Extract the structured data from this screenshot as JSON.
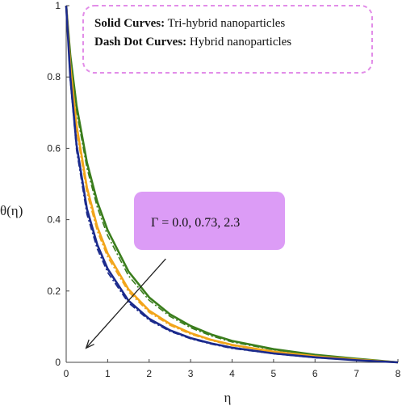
{
  "chart_data": {
    "type": "line",
    "xlabel": "η",
    "ylabel": "θ(η)",
    "xlim": [
      0,
      8
    ],
    "ylim": [
      0,
      1
    ],
    "x_ticks": [
      "0",
      "1",
      "2",
      "3",
      "4",
      "5",
      "6",
      "7",
      "8"
    ],
    "y_ticks": [
      "0",
      "0.2",
      "0.4",
      "0.6",
      "0.8",
      "1"
    ],
    "x": [
      0,
      0.1,
      0.25,
      0.5,
      0.75,
      1,
      1.5,
      2,
      2.5,
      3,
      3.5,
      4,
      5,
      6,
      7,
      8
    ],
    "series": [
      {
        "color": "#3a7d1c",
        "style": "solid",
        "values": [
          1,
          0.86,
          0.72,
          0.56,
          0.45,
          0.37,
          0.255,
          0.182,
          0.135,
          0.102,
          0.078,
          0.06,
          0.037,
          0.021,
          0.01,
          0
        ]
      },
      {
        "color": "#3a7d1c",
        "style": "dashdot",
        "values": [
          1,
          0.85,
          0.705,
          0.545,
          0.435,
          0.355,
          0.243,
          0.174,
          0.129,
          0.097,
          0.074,
          0.057,
          0.035,
          0.02,
          0.009,
          0
        ]
      },
      {
        "color": "#f2a51a",
        "style": "solid",
        "values": [
          1,
          0.83,
          0.665,
          0.49,
          0.38,
          0.305,
          0.205,
          0.145,
          0.108,
          0.082,
          0.063,
          0.049,
          0.03,
          0.017,
          0.008,
          0
        ]
      },
      {
        "color": "#f2a51a",
        "style": "dashdot",
        "values": [
          1,
          0.82,
          0.65,
          0.475,
          0.368,
          0.295,
          0.198,
          0.14,
          0.104,
          0.079,
          0.061,
          0.047,
          0.029,
          0.016,
          0.007,
          0
        ]
      },
      {
        "color": "#1b2a8c",
        "style": "solid",
        "values": [
          1,
          0.8,
          0.61,
          0.43,
          0.33,
          0.262,
          0.173,
          0.122,
          0.09,
          0.068,
          0.053,
          0.041,
          0.025,
          0.014,
          0.006,
          0
        ]
      },
      {
        "color": "#1b2a8c",
        "style": "dashdot",
        "values": [
          1,
          0.79,
          0.595,
          0.415,
          0.318,
          0.252,
          0.167,
          0.118,
          0.087,
          0.066,
          0.051,
          0.039,
          0.024,
          0.013,
          0.006,
          0
        ]
      }
    ],
    "legend_note": {
      "line1_bold": "Solid Curves:",
      "line1_text": " Tri-hybrid nanoparticles",
      "line2_bold": "Dash Dot Curves:",
      "line2_text": " Hybrid nanoparticles",
      "border_color": "#e28de8"
    },
    "annotation": {
      "text": "Γ = 0.0, 0.73, 2.3",
      "bg_color": "#dc9cf6",
      "arrow_from": [
        2.4,
        0.29
      ],
      "arrow_to": [
        0.48,
        0.04
      ]
    }
  }
}
